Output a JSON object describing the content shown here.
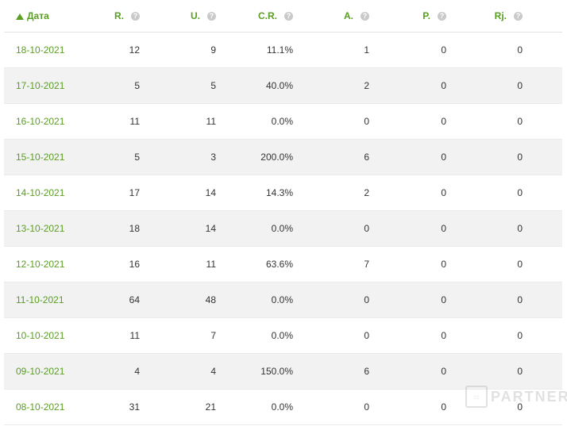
{
  "table": {
    "sort_column": "Дата",
    "headers": [
      {
        "label": "Дата"
      },
      {
        "label": "R."
      },
      {
        "label": "U."
      },
      {
        "label": "C.R."
      },
      {
        "label": "A."
      },
      {
        "label": "P."
      },
      {
        "label": "Rj."
      }
    ],
    "help_glyph": "?",
    "rows": [
      [
        "18-10-2021",
        "12",
        "9",
        "11.1%",
        "1",
        "0",
        "0"
      ],
      [
        "17-10-2021",
        "5",
        "5",
        "40.0%",
        "2",
        "0",
        "0"
      ],
      [
        "16-10-2021",
        "11",
        "11",
        "0.0%",
        "0",
        "0",
        "0"
      ],
      [
        "15-10-2021",
        "5",
        "3",
        "200.0%",
        "6",
        "0",
        "0"
      ],
      [
        "14-10-2021",
        "17",
        "14",
        "14.3%",
        "2",
        "0",
        "0"
      ],
      [
        "13-10-2021",
        "18",
        "14",
        "0.0%",
        "0",
        "0",
        "0"
      ],
      [
        "12-10-2021",
        "16",
        "11",
        "63.6%",
        "7",
        "0",
        "0"
      ],
      [
        "11-10-2021",
        "64",
        "48",
        "0.0%",
        "0",
        "0",
        "0"
      ],
      [
        "10-10-2021",
        "11",
        "7",
        "0.0%",
        "0",
        "0",
        "0"
      ],
      [
        "09-10-2021",
        "4",
        "4",
        "150.0%",
        "6",
        "0",
        "0"
      ],
      [
        "08-10-2021",
        "31",
        "21",
        "0.0%",
        "0",
        "0",
        "0"
      ]
    ]
  },
  "watermark": {
    "text": "PARTNER",
    "icon": "chat-bubble-icon"
  },
  "colors": {
    "accent": "#5a9e23",
    "row_alt": "#f2f2f2",
    "help_icon": "#c9c9c9"
  }
}
